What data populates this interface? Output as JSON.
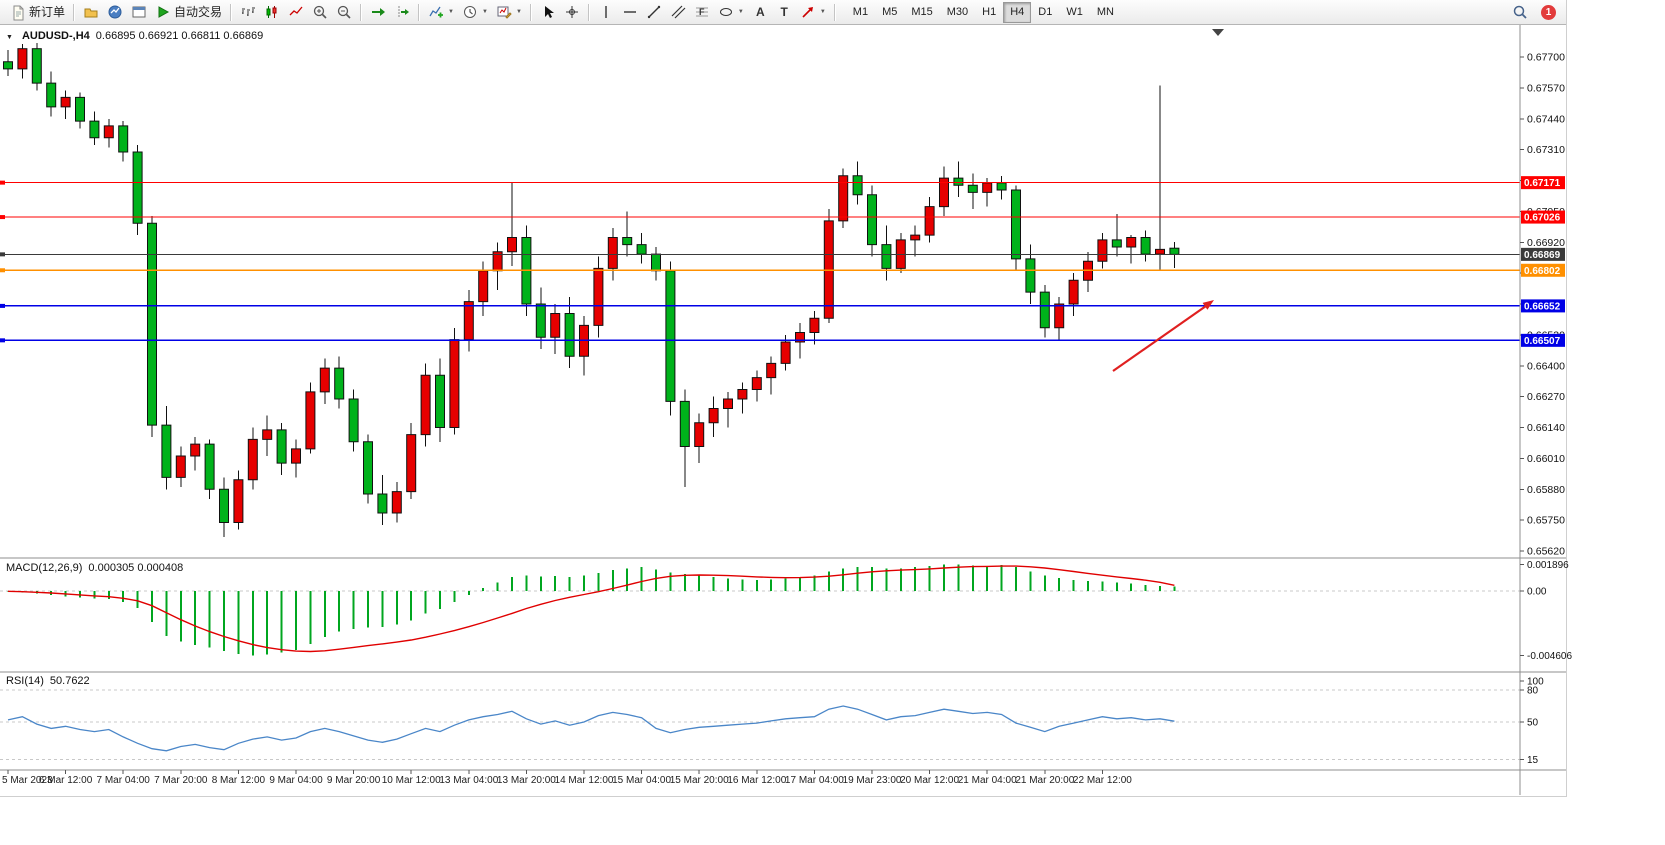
{
  "toolbar": {
    "buttons": [
      {
        "name": "new-order-button",
        "icon": "new-order",
        "label": "新订单"
      },
      {
        "sep": true
      },
      {
        "name": "profiles-button",
        "icon": "profiles"
      },
      {
        "name": "market-watch-button",
        "icon": "market-watch"
      },
      {
        "name": "data-window-button",
        "icon": "data-window"
      },
      {
        "name": "auto-trading-button",
        "icon": "auto-play",
        "label": "自动交易"
      },
      {
        "sep": true
      },
      {
        "name": "bar-chart-button",
        "icon": "bars-chart"
      },
      {
        "name": "candlestick-chart-button",
        "icon": "candles-chart"
      },
      {
        "name": "line-chart-button",
        "icon": "line-chart"
      },
      {
        "name": "zoom-in-button",
        "icon": "zoom-in"
      },
      {
        "name": "zoom-out-button",
        "icon": "zoom-out"
      },
      {
        "sep": true
      },
      {
        "name": "auto-scroll-button",
        "icon": "auto-scroll"
      },
      {
        "name": "chart-shift-button",
        "icon": "chart-shift"
      },
      {
        "sep": true
      },
      {
        "name": "indicators-button",
        "icon": "indicators-add",
        "caret": true
      },
      {
        "name": "periods-button",
        "icon": "periods-clock",
        "caret": true
      },
      {
        "name": "templates-button",
        "icon": "templates",
        "caret": true
      },
      {
        "sep": true
      },
      {
        "name": "cursor-button",
        "icon": "cursor"
      },
      {
        "name": "crosshair-button",
        "icon": "crosshair"
      },
      {
        "sep": true
      },
      {
        "name": "vertical-line-button",
        "icon": "vline"
      },
      {
        "name": "horizontal-line-button",
        "icon": "hline"
      },
      {
        "name": "trendline-button",
        "icon": "trendline"
      },
      {
        "name": "channel-button",
        "icon": "channel"
      },
      {
        "name": "fibonacci-button",
        "icon": "fibonacci"
      },
      {
        "name": "shapes-button",
        "icon": "shapes",
        "caret": true
      },
      {
        "name": "text-button",
        "icon": "text-a"
      },
      {
        "name": "label-button",
        "icon": "label-t"
      },
      {
        "name": "arrows-button",
        "icon": "arrows-tool",
        "caret": true
      },
      {
        "sep": true
      }
    ],
    "timeframes": [
      "M1",
      "M5",
      "M15",
      "M30",
      "H1",
      "H4",
      "D1",
      "W1",
      "MN"
    ],
    "active_timeframe": "H4",
    "notification_count": "1"
  },
  "panels": {
    "main_title": "AUDUSD-,H4",
    "main_ohlc": "0.66895 0.66921 0.66811 0.66869",
    "macd_title": "MACD(12,26,9)",
    "macd_values": "0.000305 0.000408",
    "rsi_title": "RSI(14)",
    "rsi_value": "50.7622"
  },
  "chart_data": {
    "type": "candlestick",
    "symbol": "AUDUSD-",
    "timeframe": "H4",
    "current_bar": {
      "open": 0.66895,
      "high": 0.66921,
      "low": 0.66811,
      "close": 0.66869
    },
    "colors": {
      "up": "#e60000",
      "down": "#00b21b",
      "wick": "#111111",
      "macd_histogram": "#00a61f",
      "macd_signal": "#e00000",
      "rsi_line": "#4a86c8",
      "current_line": "#3a3a3a"
    },
    "y_axis": {
      "ticks": [
        0.677,
        0.6757,
        0.6744,
        0.6731,
        0.6718,
        0.6705,
        0.6692,
        0.6679,
        0.6666,
        0.6653,
        0.664,
        0.6627,
        0.6614,
        0.6601,
        0.6588,
        0.6575,
        0.6562
      ]
    },
    "hlines": [
      {
        "price": 0.67171,
        "label": "0.67171",
        "color": "#ff0000",
        "width": 1.2
      },
      {
        "price": 0.67026,
        "label": "0.67026",
        "color": "#ff0000",
        "width": 1.2
      },
      {
        "price": 0.66869,
        "label": "0.66869",
        "color": "#3a3a3a",
        "width": 1.0,
        "kind": "current-price"
      },
      {
        "price": 0.66802,
        "label": "0.66802",
        "color": "#ff9000",
        "width": 1.6
      },
      {
        "price": 0.66652,
        "label": "0.66652",
        "color": "#0000e6",
        "width": 1.6
      },
      {
        "price": 0.66507,
        "label": "0.66507",
        "color": "#0000e6",
        "width": 1.6
      }
    ],
    "time_labels": [
      "5 Mar 2023",
      "6 Mar 12:00",
      "7 Mar 04:00",
      "7 Mar 20:00",
      "8 Mar 12:00",
      "9 Mar 04:00",
      "9 Mar 20:00",
      "10 Mar 12:00",
      "13 Mar 04:00",
      "13 Mar 20:00",
      "14 Mar 12:00",
      "15 Mar 04:00",
      "15 Mar 20:00",
      "16 Mar 12:00",
      "17 Mar 04:00",
      "19 Mar 23:00",
      "20 Mar 12:00",
      "21 Mar 04:00",
      "21 Mar 20:00",
      "22 Mar 12:00"
    ],
    "label_every_n_bars": 4,
    "candles": [
      [
        0.6768,
        0.6773,
        0.6762,
        0.6765
      ],
      [
        0.6765,
        0.67755,
        0.6761,
        0.67735
      ],
      [
        0.67735,
        0.6776,
        0.6756,
        0.6759
      ],
      [
        0.6759,
        0.6764,
        0.6745,
        0.6749
      ],
      [
        0.6749,
        0.6756,
        0.6744,
        0.6753
      ],
      [
        0.6753,
        0.6755,
        0.674,
        0.6743
      ],
      [
        0.6743,
        0.6747,
        0.6733,
        0.6736
      ],
      [
        0.6736,
        0.6744,
        0.6732,
        0.6741
      ],
      [
        0.6741,
        0.6743,
        0.6726,
        0.673
      ],
      [
        0.673,
        0.6733,
        0.6695,
        0.67
      ],
      [
        0.67,
        0.6703,
        0.661,
        0.6615
      ],
      [
        0.6615,
        0.6623,
        0.6588,
        0.6593
      ],
      [
        0.6593,
        0.6606,
        0.6589,
        0.6602
      ],
      [
        0.6602,
        0.661,
        0.6596,
        0.6607
      ],
      [
        0.6607,
        0.6609,
        0.6584,
        0.6588
      ],
      [
        0.6588,
        0.6593,
        0.6568,
        0.6574
      ],
      [
        0.6574,
        0.6596,
        0.6571,
        0.6592
      ],
      [
        0.6592,
        0.6614,
        0.6588,
        0.6609
      ],
      [
        0.6609,
        0.6619,
        0.6602,
        0.6613
      ],
      [
        0.6613,
        0.6616,
        0.6594,
        0.6599
      ],
      [
        0.6599,
        0.6609,
        0.6593,
        0.6605
      ],
      [
        0.6605,
        0.6633,
        0.6603,
        0.6629
      ],
      [
        0.6629,
        0.6643,
        0.6624,
        0.6639
      ],
      [
        0.6639,
        0.6644,
        0.6622,
        0.6626
      ],
      [
        0.6626,
        0.663,
        0.6604,
        0.6608
      ],
      [
        0.6608,
        0.6611,
        0.6582,
        0.6586
      ],
      [
        0.6586,
        0.6594,
        0.6573,
        0.6578
      ],
      [
        0.6578,
        0.6591,
        0.6574,
        0.6587
      ],
      [
        0.6587,
        0.6616,
        0.6584,
        0.6611
      ],
      [
        0.6611,
        0.6641,
        0.6606,
        0.6636
      ],
      [
        0.6636,
        0.6643,
        0.6608,
        0.6614
      ],
      [
        0.6614,
        0.6656,
        0.6611,
        0.6651
      ],
      [
        0.6651,
        0.6672,
        0.6646,
        0.6667
      ],
      [
        0.6667,
        0.6684,
        0.6661,
        0.668
      ],
      [
        0.668,
        0.6692,
        0.6672,
        0.6688
      ],
      [
        0.6688,
        0.6717,
        0.6682,
        0.6694
      ],
      [
        0.6694,
        0.6699,
        0.6661,
        0.6666
      ],
      [
        0.6666,
        0.6673,
        0.6647,
        0.6652
      ],
      [
        0.6652,
        0.6666,
        0.6645,
        0.6662
      ],
      [
        0.6662,
        0.6669,
        0.6639,
        0.6644
      ],
      [
        0.6644,
        0.6661,
        0.6636,
        0.6657
      ],
      [
        0.6657,
        0.6686,
        0.6652,
        0.6681
      ],
      [
        0.6681,
        0.6698,
        0.6676,
        0.6694
      ],
      [
        0.6694,
        0.6705,
        0.6686,
        0.6691
      ],
      [
        0.6691,
        0.6696,
        0.6683,
        0.6687
      ],
      [
        0.6687,
        0.669,
        0.6676,
        0.668
      ],
      [
        0.668,
        0.6684,
        0.6619,
        0.6625
      ],
      [
        0.6625,
        0.663,
        0.6589,
        0.6606
      ],
      [
        0.6606,
        0.662,
        0.6599,
        0.6616
      ],
      [
        0.6616,
        0.6627,
        0.661,
        0.6622
      ],
      [
        0.6622,
        0.6629,
        0.6614,
        0.6626
      ],
      [
        0.6626,
        0.6633,
        0.662,
        0.663
      ],
      [
        0.663,
        0.6638,
        0.6625,
        0.6635
      ],
      [
        0.6635,
        0.6644,
        0.6628,
        0.6641
      ],
      [
        0.6641,
        0.6653,
        0.6638,
        0.665
      ],
      [
        0.665,
        0.6658,
        0.6643,
        0.6654
      ],
      [
        0.6654,
        0.6663,
        0.6649,
        0.666
      ],
      [
        0.666,
        0.6706,
        0.6658,
        0.6701
      ],
      [
        0.6701,
        0.6723,
        0.6698,
        0.672
      ],
      [
        0.672,
        0.6726,
        0.6708,
        0.6712
      ],
      [
        0.6712,
        0.6716,
        0.6686,
        0.6691
      ],
      [
        0.6691,
        0.6699,
        0.6676,
        0.6681
      ],
      [
        0.6681,
        0.6696,
        0.6679,
        0.6693
      ],
      [
        0.6693,
        0.6699,
        0.6686,
        0.6695
      ],
      [
        0.6695,
        0.6711,
        0.6692,
        0.6707
      ],
      [
        0.6707,
        0.6724,
        0.6703,
        0.6719
      ],
      [
        0.6719,
        0.6726,
        0.6711,
        0.6716
      ],
      [
        0.6716,
        0.6721,
        0.6706,
        0.6713
      ],
      [
        0.6713,
        0.6719,
        0.6707,
        0.6717
      ],
      [
        0.6717,
        0.672,
        0.671,
        0.6714
      ],
      [
        0.6714,
        0.6716,
        0.668,
        0.6685
      ],
      [
        0.6685,
        0.6691,
        0.6666,
        0.6671
      ],
      [
        0.6671,
        0.6674,
        0.6652,
        0.6656
      ],
      [
        0.6656,
        0.6669,
        0.6651,
        0.6666
      ],
      [
        0.6666,
        0.6679,
        0.6661,
        0.6676
      ],
      [
        0.6676,
        0.6688,
        0.6671,
        0.6684
      ],
      [
        0.6684,
        0.6696,
        0.6681,
        0.6693
      ],
      [
        0.6693,
        0.6704,
        0.6686,
        0.669
      ],
      [
        0.669,
        0.6695,
        0.6683,
        0.6694
      ],
      [
        0.6694,
        0.6697,
        0.6684,
        0.6687
      ],
      [
        0.6687,
        0.6758,
        0.668,
        0.6689
      ],
      [
        0.66895,
        0.66921,
        0.66811,
        0.66869
      ]
    ],
    "macd": {
      "params": "12,26,9",
      "value": 0.000305,
      "signal_value": 0.000408,
      "axis_labels": [
        "0.001896",
        "0.00",
        "-0.004606"
      ],
      "histogram": [
        -5e-05,
        -0.0001,
        -0.00018,
        -0.0003,
        -0.0004,
        -0.00046,
        -0.00052,
        -0.00056,
        -0.0008,
        -0.0012,
        -0.0022,
        -0.0032,
        -0.0036,
        -0.00385,
        -0.00405,
        -0.0043,
        -0.0045,
        -0.00461,
        -0.00455,
        -0.0044,
        -0.0042,
        -0.0038,
        -0.0033,
        -0.0029,
        -0.0027,
        -0.00262,
        -0.00258,
        -0.0024,
        -0.0021,
        -0.0016,
        -0.0013,
        -0.0008,
        -0.0003,
        0.0002,
        0.0006,
        0.001,
        0.0011,
        0.00104,
        0.00108,
        0.001,
        0.0011,
        0.0013,
        0.0015,
        0.0016,
        0.0017,
        0.00152,
        0.00132,
        0.0012,
        0.0011,
        0.001,
        0.0009,
        0.00082,
        0.0008,
        0.00082,
        0.0009,
        0.001,
        0.00112,
        0.0014,
        0.0016,
        0.00172,
        0.0017,
        0.00162,
        0.0016,
        0.0017,
        0.0018,
        0.0019,
        0.00188,
        0.00182,
        0.0018,
        0.00186,
        0.0017,
        0.0014,
        0.0011,
        0.00092,
        0.0008,
        0.00072,
        0.00068,
        0.0006,
        0.00052,
        0.00044,
        0.00036,
        0.000305
      ],
      "signal": [
        -2e-05,
        -5e-05,
        -9e-05,
        -0.00014,
        -0.00021,
        -0.00028,
        -0.00035,
        -0.00041,
        -0.00052,
        -0.0007,
        -0.00105,
        -0.00155,
        -0.00205,
        -0.0025,
        -0.0029,
        -0.00325,
        -0.00356,
        -0.00383,
        -0.00404,
        -0.00419,
        -0.00429,
        -0.00432,
        -0.00427,
        -0.00416,
        -0.00403,
        -0.0039,
        -0.00378,
        -0.00365,
        -0.0035,
        -0.0033,
        -0.00307,
        -0.00283,
        -0.00255,
        -0.00225,
        -0.00193,
        -0.0016,
        -0.00125,
        -0.00095,
        -0.00068,
        -0.00045,
        -0.00025,
        -5e-05,
        0.00018,
        0.00042,
        0.00068,
        0.0009,
        0.00105,
        0.00112,
        0.00114,
        0.00113,
        0.0011,
        0.00106,
        0.00101,
        0.00097,
        0.00095,
        0.00096,
        0.00099,
        0.00106,
        0.00116,
        0.00127,
        0.00137,
        0.00144,
        0.00149,
        0.00153,
        0.00158,
        0.00164,
        0.0017,
        0.00174,
        0.00176,
        0.00178,
        0.00178,
        0.00173,
        0.00164,
        0.00152,
        0.00139,
        0.00126,
        0.00113,
        0.00101,
        0.00089,
        0.00077,
        0.00062,
        0.000408
      ]
    },
    "rsi": {
      "period": 14,
      "value": 50.7622,
      "levels": [
        80,
        50,
        15
      ],
      "axis_labels": [
        100,
        80,
        50,
        15
      ],
      "series": [
        52,
        55,
        48,
        44,
        46,
        43,
        41,
        43,
        36,
        30,
        25,
        23,
        27,
        29,
        26,
        24,
        30,
        34,
        36,
        33,
        35,
        41,
        44,
        41,
        37,
        33,
        31,
        34,
        39,
        44,
        41,
        47,
        52,
        55,
        57,
        60,
        53,
        48,
        51,
        47,
        50,
        56,
        59,
        57,
        54,
        44,
        40,
        43,
        45,
        46,
        47,
        48,
        49,
        51,
        53,
        54,
        55,
        62,
        65,
        62,
        57,
        52,
        55,
        56,
        59,
        62,
        60,
        58,
        59,
        57,
        49,
        45,
        41,
        46,
        49,
        52,
        55,
        53,
        54,
        52,
        53,
        50.76
      ]
    },
    "arrow": {
      "from": [
        1113,
        346
      ],
      "to": [
        1214,
        275
      ],
      "color": "#e02020"
    },
    "shift_marker_x": 1218
  }
}
